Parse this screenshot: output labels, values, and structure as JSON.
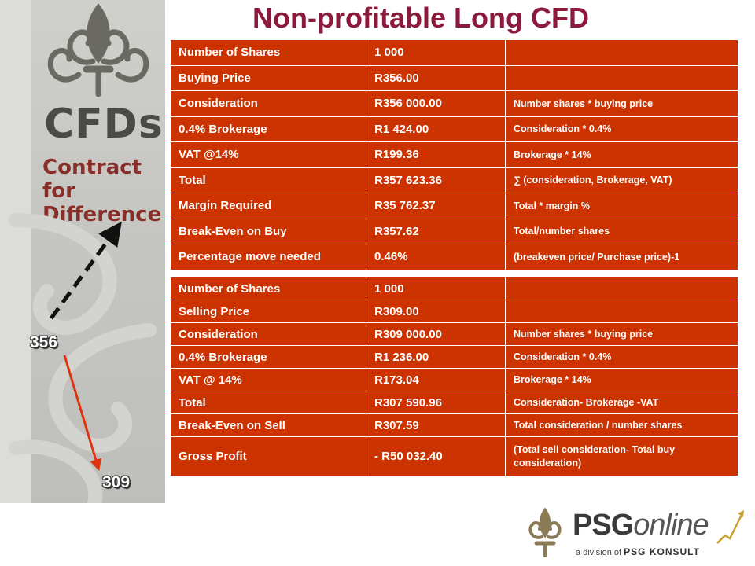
{
  "title": "Non-profitable Long CFD",
  "branding": {
    "cfds": "CFDs",
    "contract_line1": "Contract for",
    "contract_line2": "Difference",
    "psg_main": "PSG",
    "psg_online": "online",
    "psg_division_prefix": "a division of",
    "psg_division_name": "PSG KONSULT"
  },
  "price_labels": {
    "buy": "356",
    "sell": "309"
  },
  "colors": {
    "table_bg": "#cc3300",
    "title": "#8b1a3c",
    "up_arrow": "#111111",
    "down_arrow": "#dd3311"
  },
  "buy_table": {
    "rows": [
      {
        "label": "Number of Shares",
        "value": "1 000",
        "note": ""
      },
      {
        "label": "Buying Price",
        "value": "R356.00",
        "note": ""
      },
      {
        "label": "Consideration",
        "value": "R356 000.00",
        "note": "Number shares * buying price"
      },
      {
        "label": "0.4% Brokerage",
        "value": "R1 424.00",
        "note": "Consideration * 0.4%"
      },
      {
        "label": "VAT @14%",
        "value": "R199.36",
        "note": "Brokerage * 14%"
      },
      {
        "label": "Total",
        "value": "R357 623.36",
        "note": "∑ (consideration, Brokerage, VAT)"
      },
      {
        "label": "Margin Required",
        "value": "R35 762.37",
        "note": "Total * margin %"
      },
      {
        "label": "Break-Even on Buy",
        "value": "R357.62",
        "note": "Total/number shares"
      },
      {
        "label": "Percentage move needed",
        "value": "0.46%",
        "note": "(breakeven price/ Purchase price)-1"
      }
    ]
  },
  "sell_table": {
    "rows": [
      {
        "label": "Number of Shares",
        "value": "1 000",
        "note": ""
      },
      {
        "label": "Selling Price",
        "value": "R309.00",
        "note": ""
      },
      {
        "label": "Consideration",
        "value": "R309 000.00",
        "note": "Number shares * buying price"
      },
      {
        "label": "0.4% Brokerage",
        "value": "R1 236.00",
        "note": "Consideration * 0.4%"
      },
      {
        "label": "VAT @ 14%",
        "value": "R173.04",
        "note": "Brokerage * 14%"
      },
      {
        "label": "Total",
        "value": "R307 590.96",
        "note": "Consideration- Brokerage -VAT"
      },
      {
        "label": "Break-Even on Sell",
        "value": "R307.59",
        "note": "Total consideration / number shares"
      },
      {
        "label": "Gross Profit",
        "value": "- R50 032.40",
        "note": "(Total sell consideration- Total buy consideration)"
      }
    ]
  }
}
